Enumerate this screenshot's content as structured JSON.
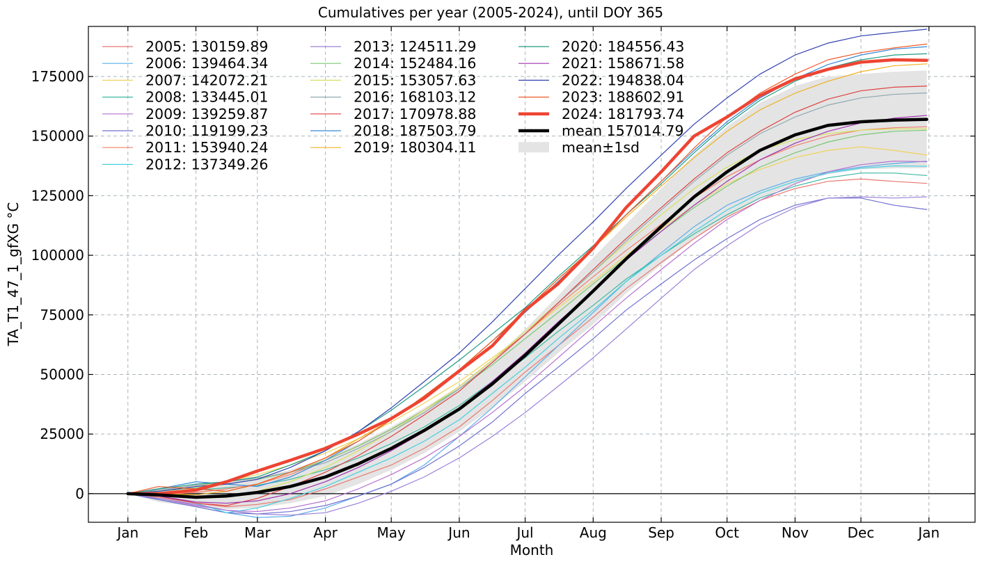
{
  "chart_data": {
    "type": "line",
    "title": "Cumulatives per year (2005-2024), until DOY 365",
    "xlabel": "Month",
    "ylabel": "TA_T1_47_1_gfXG  °C",
    "xlim": [
      -17,
      387
    ],
    "ylim": [
      -12000,
      196000
    ],
    "grid": true,
    "legend_position": "top-left",
    "x_ticks": [
      {
        "label": "Jan",
        "doy": 1
      },
      {
        "label": "Feb",
        "doy": 32
      },
      {
        "label": "Mar",
        "doy": 60
      },
      {
        "label": "Apr",
        "doy": 91
      },
      {
        "label": "May",
        "doy": 121
      },
      {
        "label": "Jun",
        "doy": 152
      },
      {
        "label": "Jul",
        "doy": 182
      },
      {
        "label": "Aug",
        "doy": 213
      },
      {
        "label": "Sep",
        "doy": 244
      },
      {
        "label": "Oct",
        "doy": 274
      },
      {
        "label": "Nov",
        "doy": 305
      },
      {
        "label": "Dec",
        "doy": 335
      },
      {
        "label": "Jan",
        "doy": 366
      }
    ],
    "y_ticks": [
      {
        "label": "0",
        "value": 0
      },
      {
        "label": "25000",
        "value": 25000
      },
      {
        "label": "50000",
        "value": 50000
      },
      {
        "label": "75000",
        "value": 75000
      },
      {
        "label": "100000",
        "value": 100000
      },
      {
        "label": "125000",
        "value": 125000
      },
      {
        "label": "150000",
        "value": 150000
      },
      {
        "label": "175000",
        "value": 175000
      }
    ],
    "series_x_doy": [
      1,
      15,
      32,
      46,
      60,
      75,
      91,
      106,
      121,
      136,
      152,
      167,
      182,
      197,
      213,
      228,
      244,
      259,
      274,
      289,
      305,
      320,
      335,
      350,
      365
    ],
    "series": [
      {
        "name": "2005",
        "legend": "2005: 130159.89",
        "color": "#e8776f",
        "width": 1.2,
        "values": [
          0,
          -1500,
          -4000,
          -5500,
          -4500,
          -2500,
          2000,
          7000,
          12000,
          19000,
          28000,
          39000,
          51000,
          62000,
          74000,
          86000,
          97000,
          107000,
          116000,
          123000,
          128000,
          131000,
          132000,
          131000,
          130160
        ]
      },
      {
        "name": "2006",
        "legend": "2006: 139464.34",
        "color": "#5aade8",
        "width": 1.2,
        "values": [
          0,
          -2500,
          -5500,
          -8000,
          -10000,
          -9500,
          -6000,
          -1000,
          4000,
          12000,
          24000,
          36000,
          49000,
          62000,
          76000,
          89000,
          101000,
          112000,
          121000,
          127000,
          132000,
          135000,
          137000,
          138500,
          139464
        ]
      },
      {
        "name": "2007",
        "legend": "2007: 142072.21",
        "color": "#f0d25a",
        "width": 1.2,
        "values": [
          0,
          1000,
          3000,
          5000,
          8000,
          12000,
          17000,
          23000,
          30000,
          38000,
          47000,
          57000,
          67000,
          78000,
          89000,
          100000,
          111000,
          121000,
          130000,
          136000,
          141000,
          144000,
          145500,
          144000,
          142072
        ]
      },
      {
        "name": "2008",
        "legend": "2008: 133445.01",
        "color": "#3cb8a0",
        "width": 1.2,
        "values": [
          0,
          500,
          1500,
          2500,
          3500,
          6000,
          10000,
          15000,
          21000,
          28000,
          37000,
          47000,
          57000,
          68000,
          79000,
          90000,
          100000,
          109000,
          117000,
          124000,
          129000,
          132500,
          134500,
          134500,
          133445
        ]
      },
      {
        "name": "2009",
        "legend": "2009: 139259.87",
        "color": "#b56fd0",
        "width": 1.2,
        "values": [
          0,
          -2000,
          -5000,
          -7000,
          -7500,
          -6000,
          -3000,
          2000,
          8000,
          15000,
          24000,
          34000,
          45000,
          57000,
          70000,
          82000,
          94000,
          105000,
          115000,
          123000,
          130000,
          135000,
          138000,
          139500,
          139260
        ]
      },
      {
        "name": "2010",
        "legend": "2010: 119199.23",
        "color": "#6f6fd0",
        "width": 1.2,
        "values": [
          0,
          -2500,
          -5500,
          -8000,
          -8500,
          -7500,
          -5000,
          -1000,
          4000,
          11000,
          20000,
          30000,
          42000,
          53000,
          65000,
          77000,
          88000,
          98000,
          107000,
          115000,
          121000,
          124000,
          124000,
          121000,
          119199
        ]
      },
      {
        "name": "2011",
        "legend": "2011: 153940.24",
        "color": "#f0806a",
        "width": 1.2,
        "values": [
          0,
          -500,
          500,
          2000,
          4000,
          8000,
          14000,
          20000,
          27000,
          35000,
          45000,
          56000,
          67000,
          79000,
          91000,
          102000,
          113000,
          124000,
          133000,
          140000,
          146000,
          150000,
          152500,
          153500,
          153940
        ]
      },
      {
        "name": "2012",
        "legend": "2012: 137349.26",
        "color": "#46d0e0",
        "width": 1.2,
        "values": [
          0,
          -1000,
          -4000,
          -8000,
          -6000,
          -2000,
          3000,
          9000,
          15000,
          22000,
          31000,
          42000,
          53000,
          65000,
          77000,
          89000,
          100000,
          110000,
          119000,
          126000,
          131000,
          134500,
          136500,
          137500,
          137349
        ]
      },
      {
        "name": "2013",
        "legend": "2013: 124511.29",
        "color": "#9a80d8",
        "width": 1.2,
        "values": [
          0,
          -2000,
          -4500,
          -7000,
          -8500,
          -9000,
          -8000,
          -4000,
          1000,
          7000,
          15000,
          24000,
          34000,
          45000,
          57000,
          69000,
          82000,
          94000,
          104000,
          113000,
          120000,
          124000,
          124500,
          124000,
          124511
        ]
      },
      {
        "name": "2014",
        "legend": "2014: 152484.16",
        "color": "#7ac870",
        "width": 1.2,
        "values": [
          0,
          1000,
          2500,
          4000,
          6000,
          9000,
          14000,
          20000,
          27000,
          35000,
          44000,
          54000,
          65000,
          76000,
          88000,
          99000,
          110000,
          120000,
          129000,
          137000,
          143000,
          147500,
          150500,
          152000,
          152484
        ]
      },
      {
        "name": "2015",
        "legend": "2015: 153057.63",
        "color": "#d8e060",
        "width": 1.2,
        "values": [
          0,
          -500,
          -1500,
          -1000,
          1000,
          5000,
          11000,
          18000,
          26000,
          35000,
          45000,
          56000,
          68000,
          80000,
          93000,
          105000,
          117000,
          128000,
          137000,
          144000,
          148500,
          151000,
          152500,
          153000,
          153058
        ]
      },
      {
        "name": "2016",
        "legend": "2016: 168103.12",
        "color": "#8fa8b0",
        "width": 1.2,
        "values": [
          0,
          1500,
          3500,
          5000,
          6500,
          9000,
          13000,
          19000,
          26000,
          34000,
          44000,
          55000,
          67000,
          80000,
          93000,
          106000,
          119000,
          131000,
          142000,
          151000,
          158000,
          163000,
          166000,
          167500,
          168103
        ]
      },
      {
        "name": "2017",
        "legend": "2017: 170978.88",
        "color": "#e04040",
        "width": 1.2,
        "values": [
          0,
          -1000,
          -4000,
          -5000,
          -2000,
          3000,
          9000,
          16000,
          24000,
          33000,
          43000,
          55000,
          67000,
          80000,
          94000,
          107000,
          120000,
          132000,
          143000,
          152000,
          160000,
          165500,
          169000,
          170500,
          170979
        ]
      },
      {
        "name": "2018",
        "legend": "2018: 187503.79",
        "color": "#3388d8",
        "width": 1.2,
        "values": [
          0,
          2000,
          5000,
          4000,
          3000,
          7000,
          14000,
          22000,
          31000,
          41000,
          52000,
          64000,
          76000,
          89000,
          103000,
          117000,
          131000,
          144000,
          156000,
          166000,
          174000,
          180000,
          184000,
          186500,
          187504
        ]
      },
      {
        "name": "2019",
        "legend": "2019: 180304.11",
        "color": "#f0b020",
        "width": 1.2,
        "values": [
          0,
          0,
          -500,
          1000,
          4000,
          9000,
          15000,
          23000,
          31000,
          41000,
          52000,
          64000,
          77000,
          90000,
          103000,
          116000,
          129000,
          141000,
          152000,
          161000,
          168000,
          173000,
          177000,
          179500,
          180304
        ]
      },
      {
        "name": "2020",
        "legend": "2020: 184556.43",
        "color": "#209a80",
        "width": 1.2,
        "values": [
          0,
          2000,
          4000,
          5000,
          7000,
          12000,
          18000,
          26000,
          35000,
          45000,
          56000,
          67000,
          78000,
          91000,
          104000,
          117000,
          130000,
          143000,
          155000,
          165000,
          173000,
          178500,
          182000,
          184000,
          184556
        ]
      },
      {
        "name": "2021",
        "legend": "2021: 158671.58",
        "color": "#a030b0",
        "width": 1.2,
        "values": [
          0,
          -1000,
          -3500,
          -4000,
          -3000,
          0,
          5000,
          11000,
          18000,
          26000,
          36000,
          47000,
          59000,
          72000,
          85000,
          98000,
          110000,
          121000,
          131000,
          140000,
          147000,
          152000,
          155500,
          157500,
          158672
        ]
      },
      {
        "name": "2022",
        "legend": "2022: 194838.04",
        "color": "#3040b0",
        "width": 1.2,
        "values": [
          0,
          1000,
          3000,
          4000,
          6000,
          11000,
          18000,
          26000,
          36000,
          47000,
          59000,
          72000,
          86000,
          100000,
          114000,
          128000,
          142000,
          155000,
          166000,
          176000,
          184000,
          189000,
          192000,
          193500,
          194838
        ]
      },
      {
        "name": "2023",
        "legend": "2023: 188602.91",
        "color": "#f05a28",
        "width": 1.2,
        "values": [
          0,
          3000,
          2000,
          1000,
          4000,
          9000,
          15000,
          22000,
          31000,
          41000,
          52000,
          64000,
          77000,
          90000,
          103000,
          117000,
          131000,
          145000,
          158000,
          168000,
          176000,
          182000,
          185000,
          187000,
          188603
        ]
      },
      {
        "name": "2024",
        "legend": "2024: 181793.74",
        "color": "#ee4433",
        "width": 4.5,
        "values": [
          0,
          0,
          1500,
          5000,
          9500,
          14000,
          19000,
          25000,
          31500,
          40000,
          51500,
          62000,
          77000,
          88000,
          103000,
          120000,
          135000,
          150000,
          158000,
          167000,
          174000,
          178000,
          181000,
          182000,
          181794
        ]
      },
      {
        "name": "mean",
        "legend": "mean 157014.79",
        "color": "#000000",
        "width": 4.5,
        "values": [
          0,
          -500,
          -1500,
          -1000,
          500,
          3000,
          7000,
          12500,
          19000,
          26500,
          35500,
          46000,
          58000,
          71000,
          85000,
          98500,
          112000,
          124500,
          135000,
          144000,
          150500,
          154500,
          156000,
          156700,
          157015
        ]
      }
    ],
    "band": {
      "name": "mean±1sd",
      "legend": "mean±1sd",
      "color": "#e4e4e4",
      "lower": [
        0,
        -3500,
        -5500,
        -6500,
        -6000,
        -4000,
        -1000,
        4000,
        10000,
        17000,
        26000,
        36000,
        47000,
        59000,
        71000,
        84000,
        96000,
        107000,
        116000,
        124000,
        130000,
        134000,
        136000,
        136500,
        136500
      ],
      "upper": [
        0,
        2500,
        2500,
        4500,
        7000,
        10000,
        15000,
        21000,
        28000,
        36000,
        45000,
        56000,
        69000,
        83000,
        99000,
        113000,
        128000,
        142000,
        154000,
        164000,
        171000,
        175000,
        176000,
        177000,
        177500
      ]
    }
  }
}
